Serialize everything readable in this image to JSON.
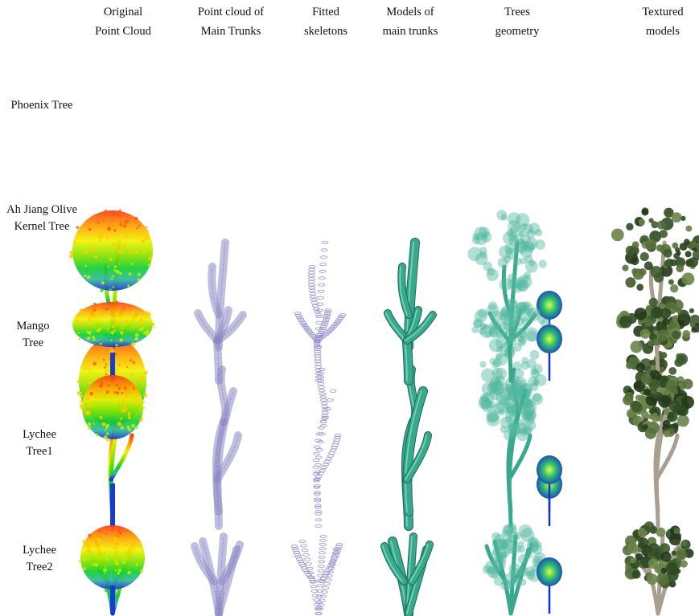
{
  "columns": [
    {
      "line1": "Original",
      "line2": "Point Cloud"
    },
    {
      "line1": "Point cloud of",
      "line2": "Main Trunks"
    },
    {
      "line1": "Fitted",
      "line2": "skeletons"
    },
    {
      "line1": "Models of",
      "line2": "main trunks"
    },
    {
      "line1": "Trees",
      "line2": "geometry"
    },
    {
      "line1": "Textured",
      "line2": "models"
    }
  ],
  "rows": [
    {
      "line1": "Phoenix Tree",
      "line2": ""
    },
    {
      "line1": "Ah Jiang Olive",
      "line2": "Kernel Tree"
    },
    {
      "line1": "Mango",
      "line2": "Tree"
    },
    {
      "line1": "Lychee",
      "line2": "Tree1"
    },
    {
      "line1": "Lychee",
      "line2": "Tree2"
    }
  ],
  "colors": {
    "trunk_model": "#3aa88c",
    "point_cloud_trunk": "#8c88c4",
    "skeleton": "#8a86c8",
    "textured_foliage": "#3e5a2c",
    "textured_bark": "#a89f90"
  }
}
